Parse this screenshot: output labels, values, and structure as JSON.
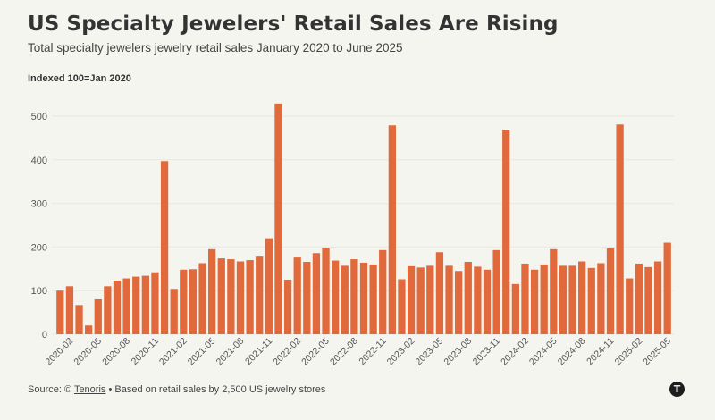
{
  "header": {
    "title": "US Specialty Jewelers' Retail Sales Are Rising",
    "subtitle": "Total specialty jewelers jewelry retail sales January 2020 to June 2025",
    "unit_label": "Indexed 100=Jan 2020"
  },
  "footer": {
    "source_prefix": "Source: ©",
    "source_link": "Tenoris",
    "separator": "•",
    "note": "Based on retail sales by 2,500 US jewelry stores"
  },
  "logo": {
    "icon": "tenoris-logo-icon",
    "glyph": "T"
  },
  "colors": {
    "bar": "#e06a3c",
    "background": "#f5f5f0",
    "grid": "#e8e8e2"
  },
  "chart_data": {
    "type": "bar",
    "title": "US Specialty Jewelers' Retail Sales Are Rising",
    "subtitle": "Total specialty jewelers jewelry retail sales January 2020 to June 2025",
    "xlabel": "",
    "ylabel": "Indexed 100=Jan 2020",
    "ylim": [
      0,
      540
    ],
    "yticks": [
      0,
      100,
      200,
      300,
      400,
      500
    ],
    "grid": true,
    "legend": "none",
    "categories": [
      "2020-01",
      "2020-02",
      "2020-03",
      "2020-04",
      "2020-05",
      "2020-06",
      "2020-07",
      "2020-08",
      "2020-09",
      "2020-10",
      "2020-11",
      "2020-12",
      "2021-01",
      "2021-02",
      "2021-03",
      "2021-04",
      "2021-05",
      "2021-06",
      "2021-07",
      "2021-08",
      "2021-09",
      "2021-10",
      "2021-11",
      "2021-12",
      "2022-01",
      "2022-02",
      "2022-03",
      "2022-04",
      "2022-05",
      "2022-06",
      "2022-07",
      "2022-08",
      "2022-09",
      "2022-10",
      "2022-11",
      "2022-12",
      "2023-01",
      "2023-02",
      "2023-03",
      "2023-04",
      "2023-05",
      "2023-06",
      "2023-07",
      "2023-08",
      "2023-09",
      "2023-10",
      "2023-11",
      "2023-12",
      "2024-01",
      "2024-02",
      "2024-03",
      "2024-04",
      "2024-05",
      "2024-06",
      "2024-07",
      "2024-08",
      "2024-09",
      "2024-10",
      "2024-11",
      "2024-12",
      "2025-01",
      "2025-02",
      "2025-03",
      "2025-04",
      "2025-05"
    ],
    "values": [
      100,
      110,
      67,
      20,
      80,
      110,
      123,
      128,
      132,
      134,
      142,
      397,
      104,
      148,
      149,
      163,
      195,
      174,
      172,
      167,
      170,
      178,
      220,
      529,
      125,
      176,
      166,
      186,
      197,
      169,
      157,
      172,
      164,
      160,
      193,
      479,
      126,
      156,
      153,
      157,
      188,
      157,
      145,
      166,
      155,
      148,
      193,
      469,
      115,
      162,
      148,
      160,
      195,
      157,
      157,
      167,
      152,
      163,
      197,
      481,
      128,
      162,
      154,
      167,
      210
    ],
    "xtick_labels": [
      "2020-02",
      "2020-05",
      "2020-08",
      "2020-11",
      "2021-02",
      "2021-05",
      "2021-08",
      "2021-11",
      "2022-02",
      "2022-05",
      "2022-08",
      "2022-11",
      "2023-02",
      "2023-05",
      "2023-08",
      "2023-11",
      "2024-02",
      "2024-05",
      "2024-08",
      "2024-11",
      "2025-02",
      "2025-05"
    ]
  }
}
